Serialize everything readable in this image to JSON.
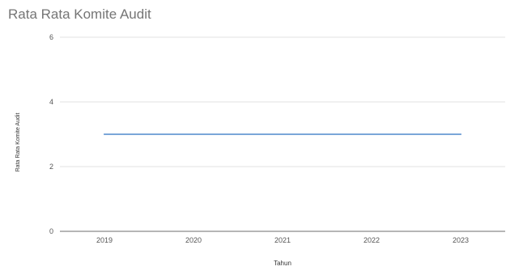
{
  "chart_data": {
    "type": "line",
    "title": "Rata Rata Komite Audit",
    "xlabel": "Tahun",
    "ylabel": "Rata Rata Komite Audit",
    "categories": [
      "2019",
      "2020",
      "2021",
      "2022",
      "2023"
    ],
    "series": [
      {
        "values": [
          3,
          3,
          3,
          3,
          3
        ],
        "color": "#7aa6d8"
      }
    ],
    "ylim": [
      0,
      6
    ],
    "yticks": [
      0,
      2,
      4,
      6
    ],
    "grid": true,
    "legend": "none"
  }
}
